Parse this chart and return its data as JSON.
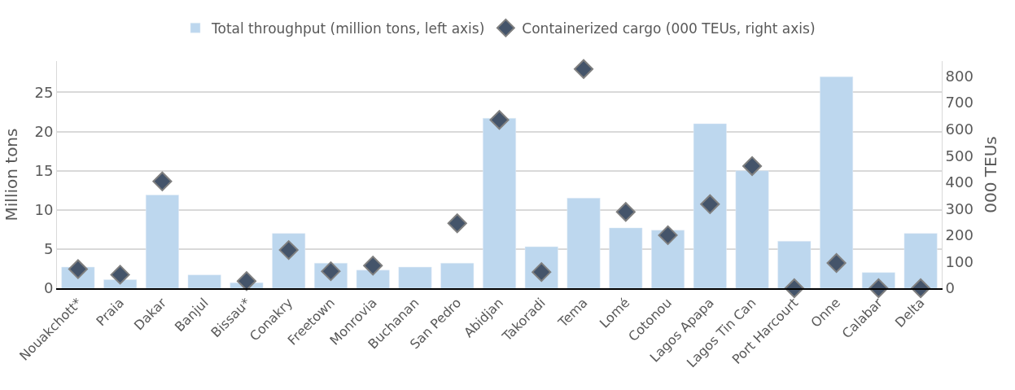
{
  "chart_data": {
    "type": "bar",
    "ylabel": "Million tons",
    "y2label": "000 TEUs",
    "categories": [
      "Nouakchott*",
      "Praia",
      "Dakar",
      "Banjul",
      "Bissau*",
      "Conakry",
      "Freetown",
      "Monrovia",
      "Buchanan",
      "San Pedro",
      "Abidjan",
      "Takoradi",
      "Tema",
      "Lomé",
      "Cotonou",
      "Lagos Apapa",
      "Lagos Tin Can",
      "Port Harcourt",
      "Onne",
      "Calabar",
      "Delta"
    ],
    "series": [
      {
        "name": "Total throughput (million tons, left axis)",
        "color": "#bdd7ee",
        "values": [
          2.7,
          1.1,
          11.9,
          1.7,
          0.7,
          7.0,
          3.2,
          2.3,
          2.7,
          3.2,
          21.7,
          5.3,
          11.5,
          7.7,
          7.4,
          21.0,
          15.0,
          6.0,
          27.0,
          2.0,
          7.0
        ]
      },
      {
        "name": "Containerized cargo (000 TEUs, right axis)",
        "type": "scatter",
        "axis": "y2",
        "marker": "diamond",
        "color": "#44546a",
        "values": [
          72,
          51,
          403,
          null,
          27,
          144,
          64,
          85,
          null,
          245,
          635,
          61,
          827,
          288,
          200,
          317,
          461,
          0,
          95,
          0,
          0
        ]
      }
    ],
    "ylim": [
      0,
      29
    ],
    "yticks": [
      0,
      5,
      10,
      15,
      20,
      25
    ],
    "y2lim": [
      0,
      857
    ],
    "y2ticks": [
      0,
      100,
      200,
      300,
      400,
      500,
      600,
      700,
      800
    ],
    "grid": "y",
    "legend": "top"
  }
}
